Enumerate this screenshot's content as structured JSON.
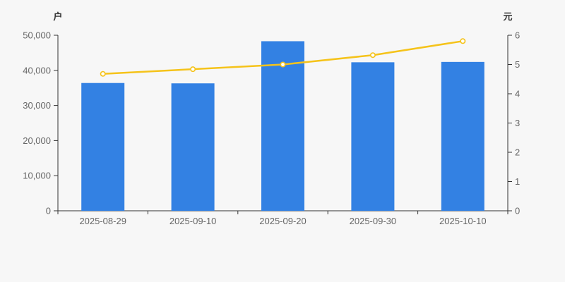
{
  "chart_data": {
    "type": "combo",
    "title": "",
    "legend": "none",
    "grid": false,
    "background": "#f7f7f7",
    "axis_color": "#333333",
    "tick_label_color": "#666666",
    "categories": [
      "2025-08-29",
      "2025-09-10",
      "2025-09-20",
      "2025-09-30",
      "2025-10-10"
    ],
    "series": [
      {
        "id": "bar-series",
        "type": "bar",
        "axis": "left",
        "color": "#3381e3",
        "values": [
          36400,
          36300,
          48300,
          42300,
          42400
        ]
      },
      {
        "id": "line-series",
        "type": "line",
        "axis": "right",
        "color": "#f5c31a",
        "marker_fill": "#ffffff",
        "values": [
          4.68,
          4.84,
          5.0,
          5.32,
          5.8
        ]
      }
    ],
    "left_axis": {
      "unit": "户",
      "min": 0,
      "max": 50000,
      "tick_step": 10000,
      "tick_labels": [
        "0",
        "10,000",
        "20,000",
        "30,000",
        "40,000",
        "50,000"
      ]
    },
    "right_axis": {
      "unit": "元",
      "min": 0,
      "max": 6,
      "tick_step": 1,
      "tick_labels": [
        "0",
        "1",
        "2",
        "3",
        "4",
        "5",
        "6"
      ]
    }
  }
}
